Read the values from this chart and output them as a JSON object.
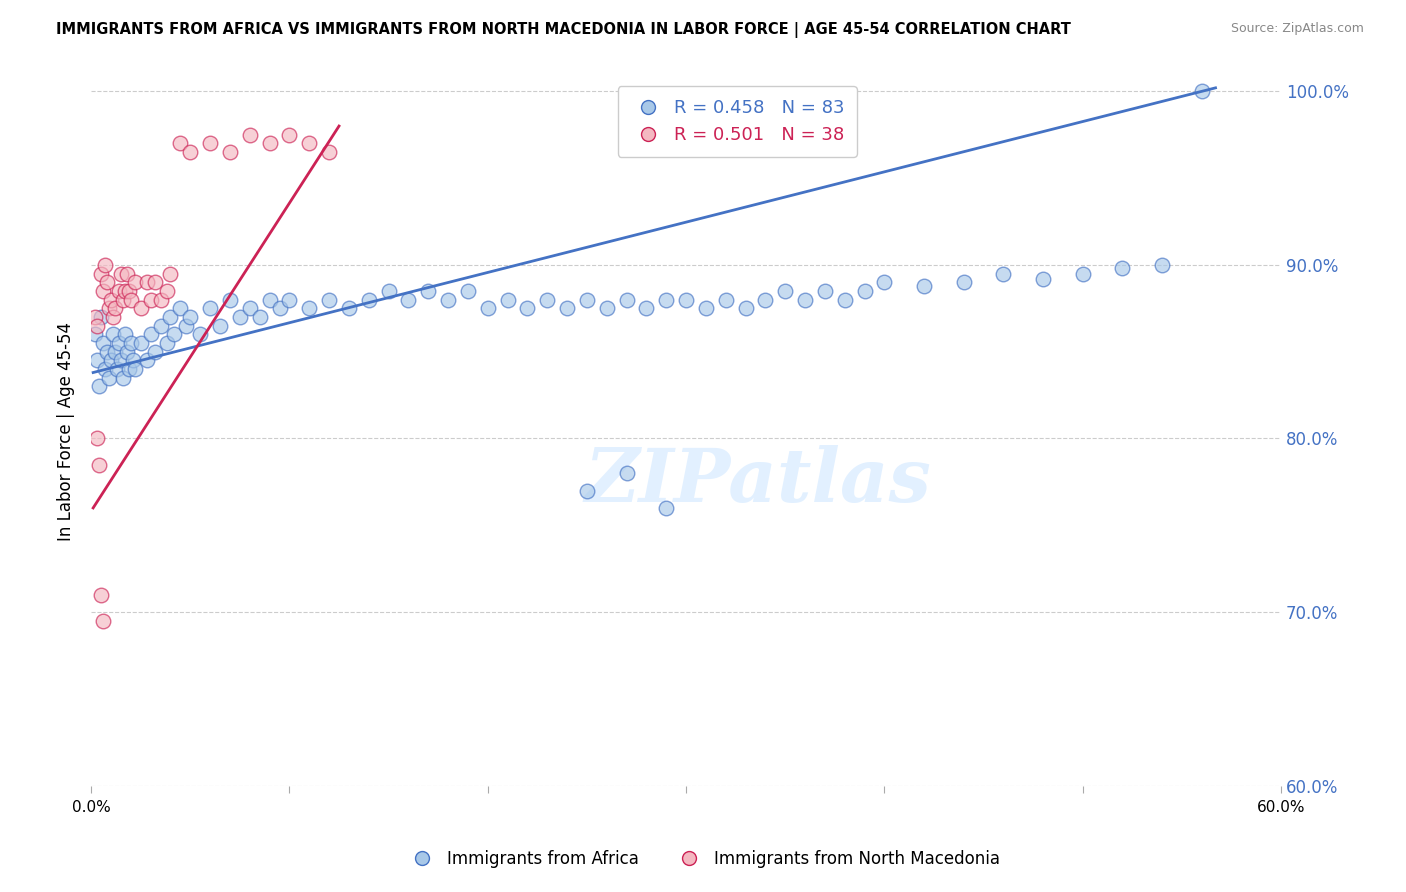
{
  "title": "IMMIGRANTS FROM AFRICA VS IMMIGRANTS FROM NORTH MACEDONIA IN LABOR FORCE | AGE 45-54 CORRELATION CHART",
  "source": "Source: ZipAtlas.com",
  "ylabel": "In Labor Force | Age 45-54",
  "xlim": [
    0.0,
    0.6
  ],
  "ylim": [
    0.6,
    1.008
  ],
  "xticks": [
    0.0,
    0.1,
    0.2,
    0.3,
    0.4,
    0.5,
    0.6
  ],
  "yticks": [
    0.6,
    0.7,
    0.8,
    0.9,
    1.0
  ],
  "ytick_labels": [
    "60.0%",
    "70.0%",
    "80.0%",
    "90.0%",
    "100.0%"
  ],
  "xtick_labels": [
    "0.0%",
    "",
    "",
    "",
    "",
    "",
    "60.0%"
  ],
  "r_africa": 0.458,
  "n_africa": 83,
  "r_macedonia": 0.501,
  "n_macedonia": 38,
  "color_africa_fill": "#a8c8e8",
  "color_africa_edge": "#4472c4",
  "color_macedonia_fill": "#f4b8c1",
  "color_macedonia_edge": "#cc2255",
  "color_line_africa": "#4472c4",
  "color_line_macedonia": "#cc2255",
  "color_axis_right": "#4472c4",
  "legend_label_africa": "Immigrants from Africa",
  "legend_label_macedonia": "Immigrants from North Macedonia",
  "watermark": "ZIPatlas",
  "africa_x": [
    0.002,
    0.003,
    0.004,
    0.005,
    0.006,
    0.007,
    0.008,
    0.009,
    0.01,
    0.011,
    0.012,
    0.013,
    0.014,
    0.015,
    0.016,
    0.017,
    0.018,
    0.019,
    0.02,
    0.021,
    0.022,
    0.025,
    0.028,
    0.03,
    0.032,
    0.035,
    0.038,
    0.04,
    0.042,
    0.045,
    0.048,
    0.05,
    0.055,
    0.06,
    0.065,
    0.07,
    0.075,
    0.08,
    0.085,
    0.09,
    0.095,
    0.1,
    0.11,
    0.12,
    0.13,
    0.14,
    0.15,
    0.16,
    0.17,
    0.18,
    0.19,
    0.2,
    0.21,
    0.22,
    0.23,
    0.24,
    0.25,
    0.26,
    0.27,
    0.28,
    0.29,
    0.3,
    0.31,
    0.32,
    0.33,
    0.34,
    0.35,
    0.36,
    0.37,
    0.38,
    0.39,
    0.4,
    0.42,
    0.44,
    0.46,
    0.48,
    0.5,
    0.52,
    0.54,
    0.56,
    0.25,
    0.27,
    0.29
  ],
  "africa_y": [
    0.86,
    0.845,
    0.83,
    0.87,
    0.855,
    0.84,
    0.85,
    0.835,
    0.845,
    0.86,
    0.85,
    0.84,
    0.855,
    0.845,
    0.835,
    0.86,
    0.85,
    0.84,
    0.855,
    0.845,
    0.84,
    0.855,
    0.845,
    0.86,
    0.85,
    0.865,
    0.855,
    0.87,
    0.86,
    0.875,
    0.865,
    0.87,
    0.86,
    0.875,
    0.865,
    0.88,
    0.87,
    0.875,
    0.87,
    0.88,
    0.875,
    0.88,
    0.875,
    0.88,
    0.875,
    0.88,
    0.885,
    0.88,
    0.885,
    0.88,
    0.885,
    0.875,
    0.88,
    0.875,
    0.88,
    0.875,
    0.88,
    0.875,
    0.88,
    0.875,
    0.88,
    0.88,
    0.875,
    0.88,
    0.875,
    0.88,
    0.885,
    0.88,
    0.885,
    0.88,
    0.885,
    0.89,
    0.888,
    0.89,
    0.895,
    0.892,
    0.895,
    0.898,
    0.9,
    1.0,
    0.77,
    0.78,
    0.76
  ],
  "macedonia_x": [
    0.002,
    0.003,
    0.005,
    0.006,
    0.007,
    0.008,
    0.009,
    0.01,
    0.011,
    0.012,
    0.014,
    0.015,
    0.016,
    0.017,
    0.018,
    0.019,
    0.02,
    0.022,
    0.025,
    0.028,
    0.03,
    0.032,
    0.035,
    0.038,
    0.04,
    0.045,
    0.05,
    0.06,
    0.07,
    0.08,
    0.09,
    0.1,
    0.11,
    0.12,
    0.003,
    0.004,
    0.005,
    0.006
  ],
  "macedonia_y": [
    0.87,
    0.865,
    0.895,
    0.885,
    0.9,
    0.89,
    0.875,
    0.88,
    0.87,
    0.875,
    0.885,
    0.895,
    0.88,
    0.885,
    0.895,
    0.885,
    0.88,
    0.89,
    0.875,
    0.89,
    0.88,
    0.89,
    0.88,
    0.885,
    0.895,
    0.97,
    0.965,
    0.97,
    0.965,
    0.975,
    0.97,
    0.975,
    0.97,
    0.965,
    0.8,
    0.785,
    0.71,
    0.695
  ],
  "line_africa_x0": 0.001,
  "line_africa_x1": 0.567,
  "line_africa_y0": 0.838,
  "line_africa_y1": 1.002,
  "line_macedonia_x0": 0.001,
  "line_macedonia_x1": 0.125,
  "line_macedonia_y0": 0.76,
  "line_macedonia_y1": 0.98
}
